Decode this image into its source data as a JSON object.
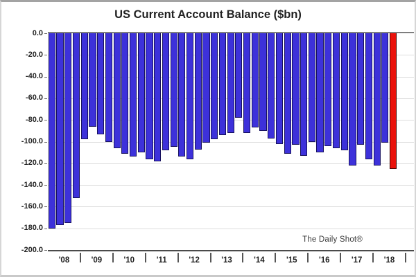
{
  "chart": {
    "title": "US Current Account Balance ($bn)",
    "watermark": "The Daily Shot®"
  },
  "chart_data": {
    "type": "bar",
    "title": "US Current Account Balance ($bn)",
    "ylabel": "",
    "xlabel": "",
    "unit": "$bn",
    "ylim": [
      -200,
      0
    ],
    "ytick_step": 20,
    "ytick_labels": [
      "0.0",
      "-20.0",
      "-40.0",
      "-60.0",
      "-80.0",
      "-100.0",
      "-120.0",
      "-140.0",
      "-160.0",
      "-180.0",
      "-200.0"
    ],
    "grid": true,
    "categories": [
      "'08",
      "'09",
      "'10",
      "'11",
      "'12",
      "'13",
      "'14",
      "'15",
      "'16",
      "'17",
      "'18"
    ],
    "quarters_per_category": 4,
    "total_slots": 44,
    "values": [
      -180,
      -177,
      -175,
      -152,
      -98,
      -86,
      -93,
      -100,
      -106,
      -111,
      -114,
      -110,
      -116,
      -118,
      -108,
      -105,
      -114,
      -116,
      -107,
      -101,
      -98,
      -94,
      -92,
      -78,
      -92,
      -87,
      -90,
      -97,
      -102,
      -111,
      -103,
      -113,
      -100,
      -110,
      -104,
      -106,
      -108,
      -122,
      -103,
      -116,
      -122,
      -101,
      -125
    ],
    "highlight_index": 42,
    "colors": {
      "bar_default": "#3d31da",
      "bar_default_border": "#17115e",
      "bar_highlight": "#ea120b",
      "bar_highlight_border": "#3c0502",
      "zero_line": "#7e7e7e",
      "gridline": "#dcdcdc",
      "axis_line": "#4a4a4a"
    },
    "annotation": "The Daily Shot®",
    "legend": null
  }
}
